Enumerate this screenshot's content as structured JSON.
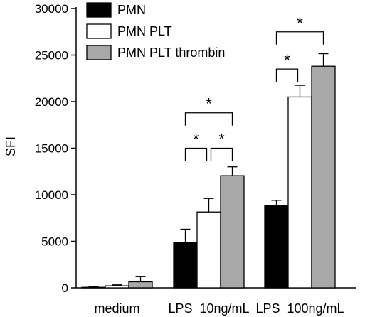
{
  "chart_data": {
    "type": "bar",
    "ylabel": "SFI",
    "xlabel": "",
    "ylim": [
      0,
      30000
    ],
    "yticks": [
      0,
      5000,
      10000,
      15000,
      20000,
      25000,
      30000
    ],
    "categories": [
      "medium",
      "LPS  10ng/mL",
      "LPS  100ng/mL"
    ],
    "series": [
      {
        "name": "PMN",
        "color": "#000000",
        "values": [
          60,
          4850,
          8850
        ],
        "errors": [
          60,
          1450,
          550
        ]
      },
      {
        "name": "PMN PLT",
        "color": "#ffffff",
        "values": [
          220,
          8150,
          20500
        ],
        "errors": [
          100,
          1450,
          1250
        ]
      },
      {
        "name": "PMN PLT thrombin",
        "color": "#a8a8a8",
        "values": [
          650,
          12050,
          23800
        ],
        "errors": [
          550,
          950,
          1350
        ]
      }
    ],
    "legend_position": "top-left",
    "grid": false,
    "significance": [
      {
        "category": 1,
        "from": 0,
        "to": 1,
        "y": 15000,
        "label": "*"
      },
      {
        "category": 1,
        "from": 1,
        "to": 2,
        "y": 15000,
        "label": "*"
      },
      {
        "category": 1,
        "from": 0,
        "to": 2,
        "y": 18800,
        "label": "*"
      },
      {
        "category": 2,
        "from": 0,
        "to": 1,
        "y": 23500,
        "label": "*"
      },
      {
        "category": 2,
        "from": 0,
        "to": 2,
        "y": 27500,
        "label": "*"
      }
    ]
  }
}
